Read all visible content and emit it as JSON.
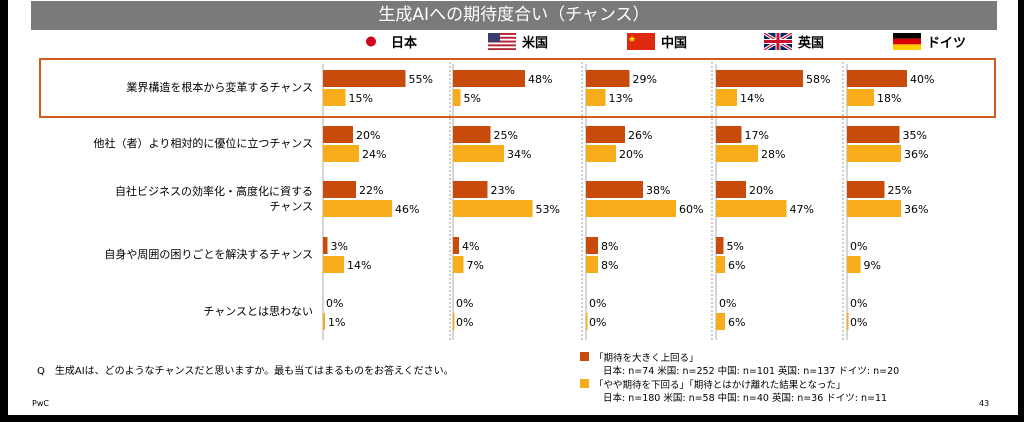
{
  "title": "生成AIへの期待度合い（チャンス）",
  "countries": [
    {
      "name": "日本",
      "flag": "japan-flag-icon"
    },
    {
      "name": "米国",
      "flag": "usa-flag-icon"
    },
    {
      "name": "中国",
      "flag": "china-flag-icon"
    },
    {
      "name": "英国",
      "flag": "uk-flag-icon"
    },
    {
      "name": "ドイツ",
      "flag": "germany-flag-icon"
    }
  ],
  "colors": {
    "series1": "#c84b0c",
    "series2": "#f6ad19",
    "highlight": "#d35b1c",
    "title_bg": "#7a7a7a"
  },
  "chart_data": {
    "type": "bar",
    "orientation": "horizontal",
    "panels": [
      "日本",
      "米国",
      "中国",
      "英国",
      "ドイツ"
    ],
    "categories": [
      [
        "業界構造を根本から変革するチャンス"
      ],
      [
        "他社（者）より相対的に優位に立つチャンス"
      ],
      [
        "自社ビジネスの効率化・高度化に資する",
        "チャンス"
      ],
      [
        "自身や周囲の困りごとを解決するチャンス"
      ],
      [
        "チャンスとは思わない"
      ]
    ],
    "series": [
      {
        "name": "「期待を大きく上回る」",
        "values": [
          [
            55,
            48,
            29,
            58,
            40
          ],
          [
            20,
            25,
            26,
            17,
            35
          ],
          [
            22,
            23,
            38,
            20,
            25
          ],
          [
            3,
            4,
            8,
            5,
            0
          ],
          [
            0,
            0,
            0,
            0,
            0
          ]
        ]
      },
      {
        "name": "「やや期待を下回る」「期待とはかけ離れた結果となった」",
        "values": [
          [
            15,
            5,
            13,
            14,
            18
          ],
          [
            24,
            34,
            20,
            28,
            36
          ],
          [
            46,
            53,
            60,
            47,
            36
          ],
          [
            14,
            7,
            8,
            6,
            9
          ],
          [
            1,
            0,
            0,
            6,
            0
          ]
        ]
      }
    ],
    "highlighted_category": 0,
    "value_suffix": "%"
  },
  "question": "Q　生成AIは、どのようなチャンスだと思いますか。最も当てはまるものをお答えください。",
  "legend": [
    {
      "label": "「期待を大きく上回る」",
      "sample": "日本: n=74 米国: n=252 中国: n=101 英国: n=137 ドイツ: n=20"
    },
    {
      "label": "「やや期待を下回る」「期待とはかけ離れた結果となった」",
      "sample": "日本: n=180 米国: n=58 中国: n=40 英国: n=36 ドイツ: n=11"
    }
  ],
  "footer": {
    "brand": "PwC",
    "page": "43"
  }
}
